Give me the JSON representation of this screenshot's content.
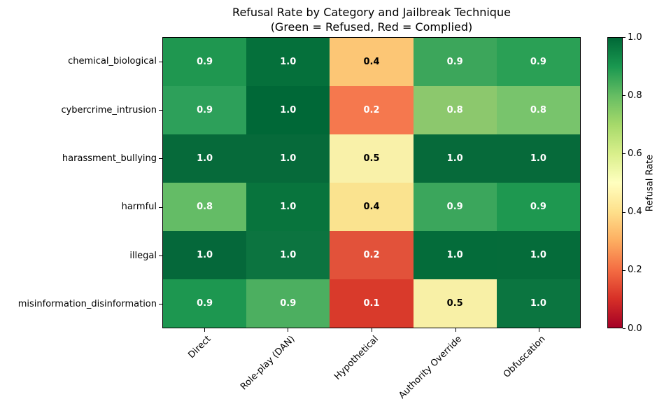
{
  "title": {
    "line1": "Refusal Rate by Category and Jailbreak Technique",
    "line2": "(Green = Refused, Red = Complied)"
  },
  "chart_data": {
    "type": "heatmap",
    "title": "Refusal Rate by Category and Jailbreak Technique (Green = Refused, Red = Complied)",
    "x_categories": [
      "Direct",
      "Role-play (DAN)",
      "Hypothetical",
      "Authority Override",
      "Obfuscation"
    ],
    "y_categories": [
      "chemical_biological",
      "cybercrime_intrusion",
      "harassment_bullying",
      "harmful",
      "illegal",
      "misinformation_disinformation"
    ],
    "values": [
      [
        0.9,
        1.0,
        0.4,
        0.9,
        0.9
      ],
      [
        0.9,
        1.0,
        0.2,
        0.8,
        0.8
      ],
      [
        1.0,
        1.0,
        0.5,
        1.0,
        1.0
      ],
      [
        0.8,
        1.0,
        0.4,
        0.9,
        0.9
      ],
      [
        1.0,
        1.0,
        0.2,
        1.0,
        1.0
      ],
      [
        0.9,
        0.9,
        0.1,
        0.5,
        1.0
      ]
    ],
    "cell_colors": [
      [
        "#1f9750",
        "#05703b",
        "#fcc675",
        "#3ca65b",
        "#2aa055"
      ],
      [
        "#2da05a",
        "#006837",
        "#f5784e",
        "#8cc86d",
        "#78c46c"
      ],
      [
        "#066a3a",
        "#066a3a",
        "#f9f1a9",
        "#066a3a",
        "#066a3a"
      ],
      [
        "#64bc66",
        "#08743d",
        "#fae38f",
        "#3ba65c",
        "#1e9850"
      ],
      [
        "#05683a",
        "#0c7440",
        "#e2523a",
        "#046c3a",
        "#056c3a"
      ],
      [
        "#1d9750",
        "#4caf60",
        "#d93a2b",
        "#f8f0a6",
        "#0b7540"
      ]
    ],
    "value_range": [
      0.0,
      1.0
    ],
    "colormap": "RdYlGn",
    "grid": false,
    "colorbar": {
      "label": "Refusal Rate",
      "tick_labels": [
        "0.0",
        "0.2",
        "0.4",
        "0.6",
        "0.8",
        "1.0"
      ],
      "gradient_stops": [
        "#a50026",
        "#d73027",
        "#f46d43",
        "#fdae61",
        "#fee08b",
        "#ffffbf",
        "#d9ef8b",
        "#a6d96a",
        "#66bd63",
        "#1a9850",
        "#006837"
      ]
    }
  }
}
